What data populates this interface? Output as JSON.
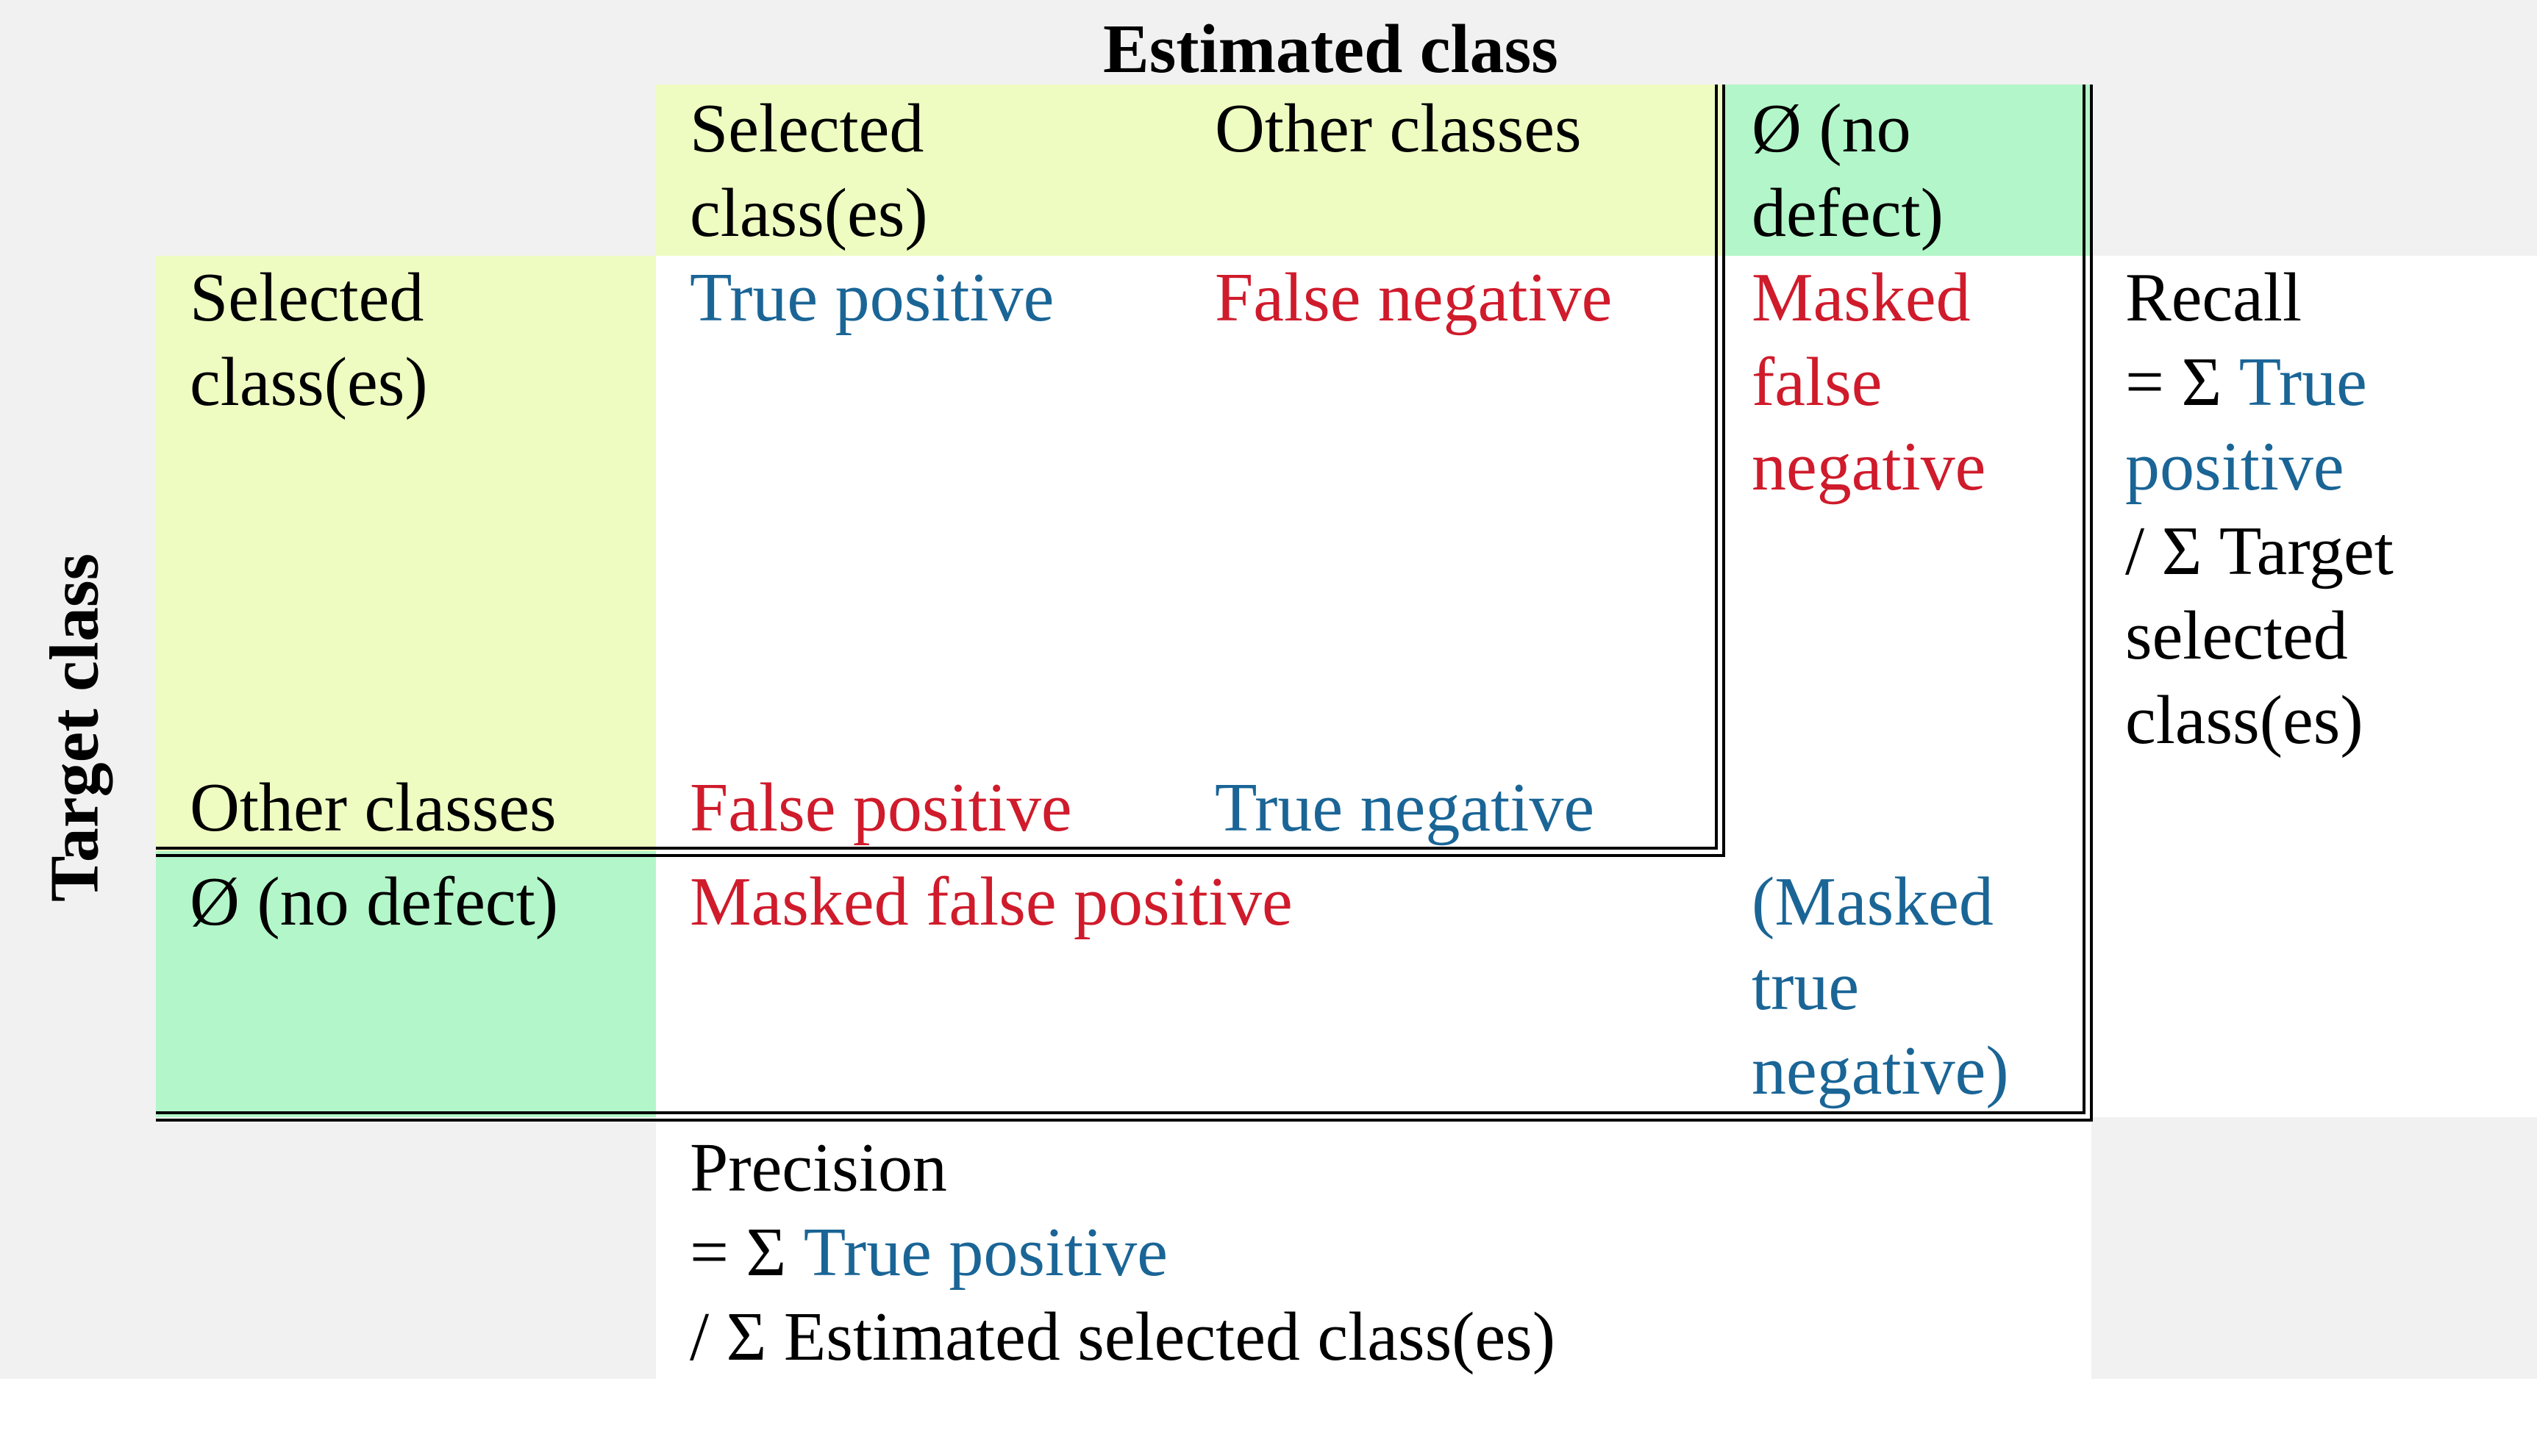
{
  "colors": {
    "light_yellow_green": "#eefcc2",
    "mint_green": "#b3f6c9",
    "light_gray": "#f1f1f1",
    "blue_text": "#1a6596",
    "red_text": "#cf1b2b"
  },
  "axis": {
    "estimated_title": "Estimated class",
    "target_title": "Target class"
  },
  "estimated_headers": {
    "selected": [
      "Selected",
      "class(es)"
    ],
    "other": [
      "Other classes"
    ],
    "none": [
      "Ø (no",
      "defect)"
    ]
  },
  "target_headers": {
    "selected": [
      "Selected",
      "class(es)"
    ],
    "other": [
      "Other classes"
    ],
    "none": [
      "Ø (no defect)"
    ]
  },
  "cells": {
    "true_positive": "True positive",
    "false_negative": "False negative",
    "masked_false_negative": [
      "Masked",
      "false",
      "negative"
    ],
    "false_positive": "False positive",
    "true_negative": "True negative",
    "masked_false_positive": "Masked false positive",
    "masked_true_negative": [
      "(Masked",
      "true",
      "negative)"
    ]
  },
  "recall": {
    "title": "Recall",
    "l2_prefix": "= Σ ",
    "l2_blue": "True",
    "l3_blue": "positive",
    "l4": "/ Σ Target",
    "l5": "selected",
    "l6": "class(es)"
  },
  "precision": {
    "title": "Precision",
    "l2_prefix": "= Σ ",
    "l2_blue": "True positive",
    "l3": "/ Σ Estimated selected class(es)"
  }
}
